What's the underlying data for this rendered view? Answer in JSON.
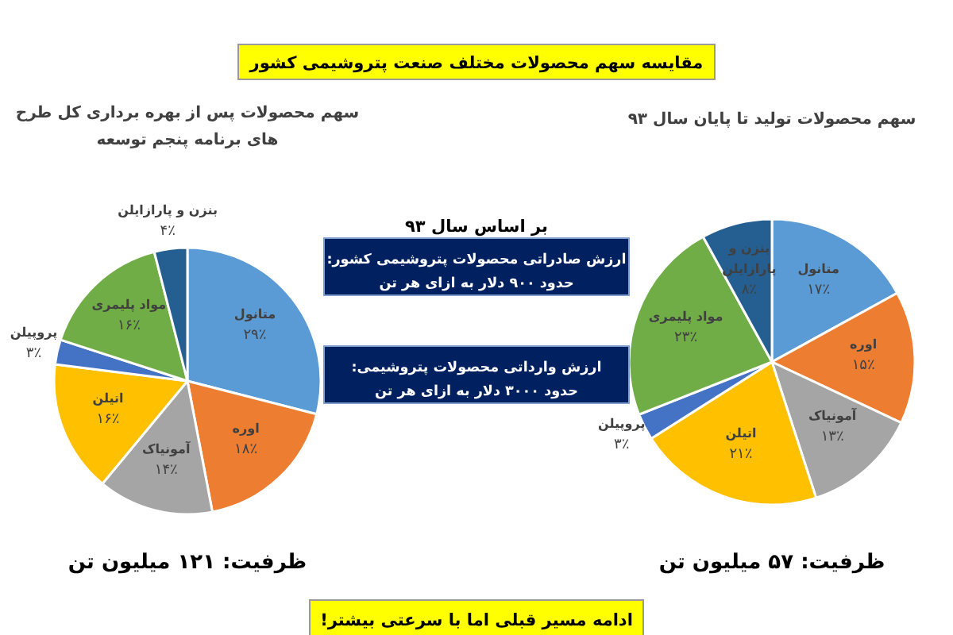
{
  "chart_data": [
    {
      "type": "pie",
      "title": "سهم محصولات پس از بهره برداری کل طرح های برنامه پنجم توسعه",
      "categories": [
        "متانول",
        "اوره",
        "آمونیاک",
        "اتیلن",
        "پروپیلن",
        "مواد پلیمری",
        "بنزن و پارازایلن"
      ],
      "values": [
        29,
        18,
        14,
        16,
        3,
        16,
        4
      ],
      "value_labels": [
        "۲۹٪",
        "۱۸٪",
        "۱۴٪",
        "۱۶٪",
        "۳٪",
        "۱۶٪",
        "۴٪"
      ],
      "colors": [
        "#5b9bd5",
        "#ed7d31",
        "#a5a5a5",
        "#ffc000",
        "#4472c4",
        "#70ad47",
        "#255e91"
      ],
      "annotations": [
        "ظرفیت: ۱۲۱ میلیون تن"
      ]
    },
    {
      "type": "pie",
      "title": "سهم محصولات تولید تا پایان سال ۹۳",
      "categories": [
        "متانول",
        "اوره",
        "آمونیاک",
        "اتیلن",
        "پروپیلن",
        "مواد پلیمری",
        "بنزن و پارازایلن"
      ],
      "values": [
        17,
        15,
        13,
        21,
        3,
        23,
        8
      ],
      "value_labels": [
        "۱۷٪",
        "۱۵٪",
        "۱۳٪",
        "۲۱٪",
        "۳٪",
        "۲۳٪",
        "۸٪"
      ],
      "colors": [
        "#5b9bd5",
        "#ed7d31",
        "#a5a5a5",
        "#ffc000",
        "#4472c4",
        "#70ad47",
        "#255e91"
      ],
      "annotations": [
        "ظرفیت: ۵۷ میلیون تن"
      ]
    },
    {
      "type": "other",
      "title": "مقایسه سهم محصولات مختلف صنعت پتروشیمی کشور",
      "annotations": [
        "بر اساس سال ۹۳",
        "ارزش صادراتی محصولات پتروشیمی کشور:\nحدود ۹۰۰ دلار به ازای هر تن",
        "ارزش وارداتی محصولات پتروشیمی:\nحدود ۳۰۰۰ دلار به ازای هر تن",
        "ادامه مسیر قبلی اما با سرعتی بیشتر!"
      ]
    }
  ]
}
